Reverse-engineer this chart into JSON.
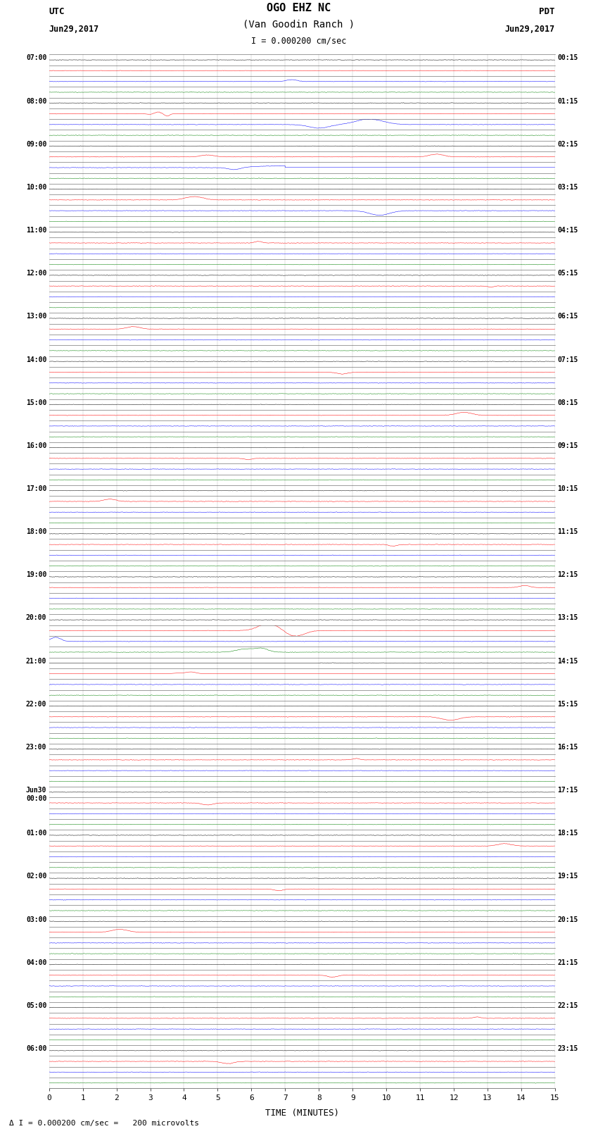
{
  "title_line1": "OGO EHZ NC",
  "title_line2": "(Van Goodin Ranch )",
  "scale_label": "I = 0.000200 cm/sec",
  "xlabel": "TIME (MINUTES)",
  "left_label_top": "UTC",
  "left_date": "Jun29,2017",
  "right_label_top": "PDT",
  "right_date": "Jun29,2017",
  "fig_width": 8.5,
  "fig_height": 16.13,
  "background_color": "#ffffff",
  "xlim": [
    0,
    15
  ],
  "xticks": [
    0,
    1,
    2,
    3,
    4,
    5,
    6,
    7,
    8,
    9,
    10,
    11,
    12,
    13,
    14,
    15
  ],
  "grid_color": "#888888",
  "n_rows": 96,
  "trace_colors_cycle": [
    "black",
    "red",
    "blue",
    "green"
  ],
  "left_utc_times": [
    "07:00",
    "",
    "",
    "",
    "08:00",
    "",
    "",
    "",
    "09:00",
    "",
    "",
    "",
    "10:00",
    "",
    "",
    "",
    "11:00",
    "",
    "",
    "",
    "12:00",
    "",
    "",
    "",
    "13:00",
    "",
    "",
    "",
    "14:00",
    "",
    "",
    "",
    "15:00",
    "",
    "",
    "",
    "16:00",
    "",
    "",
    "",
    "17:00",
    "",
    "",
    "",
    "18:00",
    "",
    "",
    "",
    "19:00",
    "",
    "",
    "",
    "20:00",
    "",
    "",
    "",
    "21:00",
    "",
    "",
    "",
    "22:00",
    "",
    "",
    "",
    "23:00",
    "",
    "",
    "",
    "Jun30\n00:00",
    "",
    "",
    "",
    "01:00",
    "",
    "",
    "",
    "02:00",
    "",
    "",
    "",
    "03:00",
    "",
    "",
    "",
    "04:00",
    "",
    "",
    "",
    "05:00",
    "",
    "",
    "",
    "06:00",
    "",
    ""
  ],
  "right_pdt_times": [
    "00:15",
    "",
    "",
    "",
    "01:15",
    "",
    "",
    "",
    "02:15",
    "",
    "",
    "",
    "03:15",
    "",
    "",
    "",
    "04:15",
    "",
    "",
    "",
    "05:15",
    "",
    "",
    "",
    "06:15",
    "",
    "",
    "",
    "07:15",
    "",
    "",
    "",
    "08:15",
    "",
    "",
    "",
    "09:15",
    "",
    "",
    "",
    "10:15",
    "",
    "",
    "",
    "11:15",
    "",
    "",
    "",
    "12:15",
    "",
    "",
    "",
    "13:15",
    "",
    "",
    "",
    "14:15",
    "",
    "",
    "",
    "15:15",
    "",
    "",
    "",
    "16:15",
    "",
    "",
    "",
    "17:15",
    "",
    "",
    "",
    "18:15",
    "",
    "",
    "",
    "19:15",
    "",
    "",
    "",
    "20:15",
    "",
    "",
    "",
    "21:15",
    "",
    "",
    "",
    "22:15",
    "",
    "",
    "",
    "23:15",
    "",
    ""
  ],
  "noise_amp": 0.04,
  "event_seeds": [
    [
      2,
      7.2,
      0.8,
      0.15,
      1
    ],
    [
      5,
      3.1,
      0.6,
      0.12,
      -1
    ],
    [
      9,
      11.5,
      1.2,
      0.2,
      1
    ],
    [
      10,
      5.5,
      0.9,
      0.18,
      -1
    ],
    [
      13,
      4.3,
      1.5,
      0.25,
      1
    ],
    [
      14,
      9.8,
      2.0,
      0.3,
      -1
    ],
    [
      17,
      6.2,
      0.7,
      0.1,
      1
    ],
    [
      21,
      13.1,
      0.5,
      0.08,
      -1
    ],
    [
      25,
      2.5,
      1.1,
      0.2,
      1
    ],
    [
      29,
      8.7,
      0.8,
      0.15,
      -1
    ],
    [
      33,
      12.3,
      1.3,
      0.22,
      1
    ],
    [
      37,
      5.9,
      0.6,
      0.1,
      -1
    ],
    [
      41,
      1.8,
      1.0,
      0.18,
      1
    ],
    [
      45,
      10.2,
      0.7,
      0.12,
      -1
    ],
    [
      49,
      14.1,
      0.9,
      0.15,
      1
    ],
    [
      53,
      7.5,
      1.2,
      0.2,
      -1
    ],
    [
      57,
      3.8,
      0.8,
      0.14,
      1
    ],
    [
      61,
      11.9,
      1.5,
      0.25,
      -1
    ],
    [
      65,
      9.1,
      0.6,
      0.1,
      1
    ],
    [
      69,
      4.7,
      0.9,
      0.16,
      -1
    ],
    [
      73,
      13.5,
      1.1,
      0.2,
      1
    ],
    [
      77,
      6.8,
      0.7,
      0.12,
      -1
    ],
    [
      81,
      2.1,
      1.3,
      0.22,
      1
    ],
    [
      85,
      8.4,
      0.8,
      0.14,
      -1
    ],
    [
      89,
      12.7,
      0.6,
      0.1,
      1
    ],
    [
      93,
      5.3,
      1.0,
      0.18,
      -1
    ]
  ]
}
